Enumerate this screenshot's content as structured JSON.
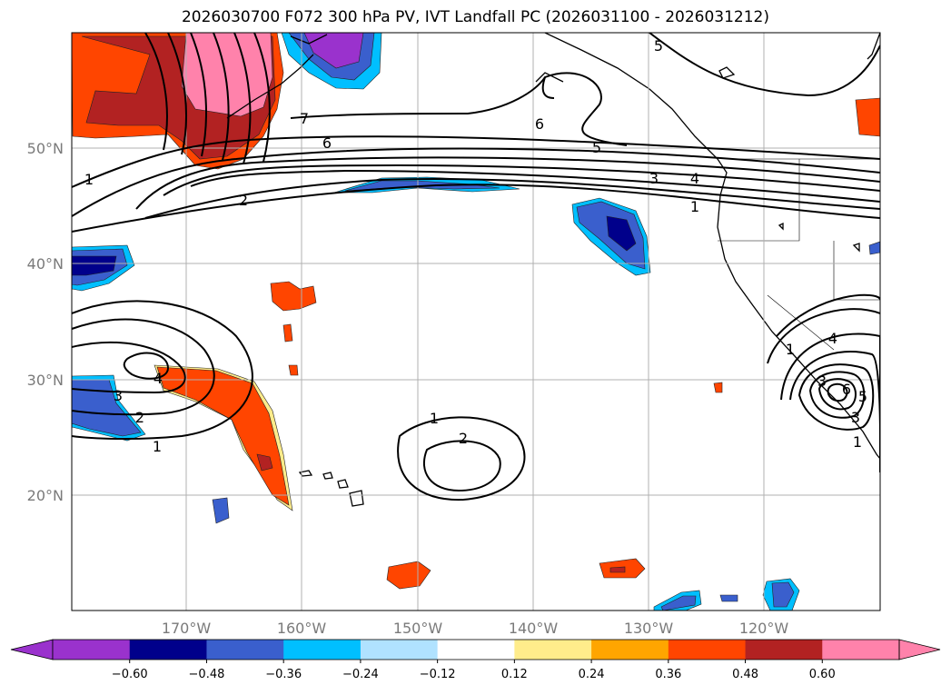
{
  "title": "2026030700 F072 300 hPa PV, IVT Landfall PC (2026031100 - 2026031212)",
  "map": {
    "lat_labels": [
      "50°N",
      "40°N",
      "30°N",
      "20°N"
    ],
    "lon_labels": [
      "170°W",
      "160°W",
      "150°W",
      "140°W",
      "130°W",
      "120°W"
    ],
    "grid": true
  },
  "contour_labels": [
    "1",
    "2",
    "6",
    "6",
    "5",
    "4",
    "3",
    "1",
    "7",
    "5",
    "1",
    "2",
    "3",
    "4",
    "1",
    "2",
    "1",
    "4",
    "3",
    "6",
    "5",
    "3",
    "1"
  ],
  "colorbar": {
    "ticks": [
      "−0.60",
      "−0.48",
      "−0.36",
      "−0.24",
      "−0.12",
      "0.12",
      "0.24",
      "0.36",
      "0.48",
      "0.60"
    ],
    "colors": [
      "#9a32cd",
      "#00008b",
      "#3a5fcd",
      "#00bfff",
      "#b0e2ff",
      "#ffffff",
      "#ffec8b",
      "#ffa500",
      "#ff4500",
      "#b22222",
      "#ff82ab",
      "#ff82ab"
    ]
  }
}
